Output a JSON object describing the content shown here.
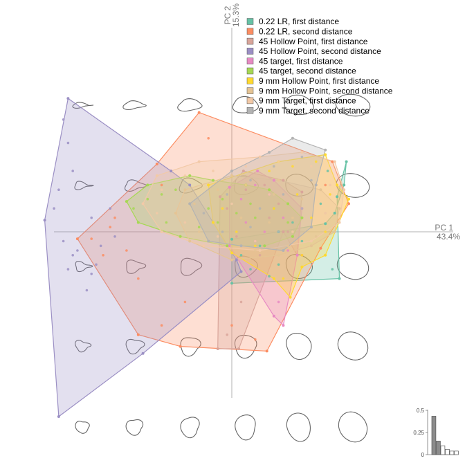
{
  "chart_data": {
    "type": "scatter",
    "subtype": "PCA morphospace with convex hulls and background outline shapes",
    "x_axis": {
      "name": "PC 1",
      "variance": "43.4%"
    },
    "y_axis": {
      "name": "PC 2",
      "variance": "15.3%"
    },
    "xlim": [
      -0.085,
      0.06
    ],
    "ylim": [
      -0.085,
      0.065
    ],
    "legend_position": "top-right",
    "series": [
      {
        "name": "0.22 LR, first distance",
        "color": "#66c2a5",
        "hull": [
          [
            0.0,
            -0.0032
          ],
          [
            0.02,
            0.0
          ],
          [
            0.04,
            0.0035
          ],
          [
            0.044,
            0.008
          ],
          [
            0.048,
            0.02
          ],
          [
            0.049,
            0.03
          ],
          [
            0.045,
            0.015
          ],
          [
            0.046,
            -0.02
          ],
          [
            0.0,
            -0.022
          ]
        ],
        "points": [
          [
            0.004,
            -0.01
          ],
          [
            0.012,
            -0.006
          ],
          [
            0.02,
            -0.014
          ],
          [
            0.03,
            -0.004
          ],
          [
            0.038,
            0.012
          ],
          [
            0.041,
            0.026
          ],
          [
            0.008,
            -0.016
          ],
          [
            0.026,
            0.004
          ],
          [
            0.043,
            -0.016
          ],
          [
            0.016,
            -0.019
          ]
        ]
      },
      {
        "name": "0.22 LR, second distance",
        "color": "#fc8d62",
        "hull": [
          [
            -0.032,
            0.029
          ],
          [
            -0.066,
            -0.003
          ],
          [
            -0.04,
            -0.044
          ],
          [
            -0.022,
            -0.049
          ],
          [
            0.015,
            -0.051
          ],
          [
            0.038,
            -0.007
          ],
          [
            0.05,
            0.012
          ],
          [
            0.043,
            0.03
          ],
          [
            -0.014,
            0.051
          ]
        ],
        "points": [
          [
            -0.06,
            -0.003
          ],
          [
            -0.055,
            -0.01
          ],
          [
            -0.05,
            0.006
          ],
          [
            -0.04,
            -0.02
          ],
          [
            -0.03,
            -0.04
          ],
          [
            -0.02,
            -0.03
          ],
          [
            0.0,
            -0.04
          ],
          [
            0.01,
            -0.046
          ],
          [
            0.03,
            -0.01
          ],
          [
            0.04,
            0.02
          ],
          [
            -0.01,
            0.04
          ],
          [
            -0.03,
            0.02
          ],
          [
            -0.045,
            -0.008
          ],
          [
            -0.052,
            0.002
          ]
        ]
      },
      {
        "name": "45 Hollow Point, first distance",
        "color": "#d9a59a",
        "hull": [
          [
            -0.005,
            0.015
          ],
          [
            0.005,
            0.026
          ],
          [
            0.022,
            0.022
          ],
          [
            0.03,
            0.017
          ],
          [
            0.028,
            -0.01
          ],
          [
            0.022,
            0.0
          ],
          [
            0.003,
            -0.05
          ],
          [
            -0.006,
            -0.05
          ]
        ],
        "points": [
          [
            -0.002,
            0.01
          ],
          [
            0.006,
            0.018
          ],
          [
            0.014,
            0.02
          ],
          [
            0.02,
            0.012
          ],
          [
            0.024,
            0.0
          ],
          [
            0.012,
            -0.01
          ],
          [
            0.004,
            -0.03
          ],
          [
            -0.002,
            -0.044
          ],
          [
            0.002,
            -0.002
          ],
          [
            0.016,
            0.006
          ]
        ]
      },
      {
        "name": "45 Hollow Point, second distance",
        "color": "#9b8fc4",
        "hull": [
          [
            -0.07,
            0.057
          ],
          [
            -0.08,
            0.005
          ],
          [
            -0.074,
            -0.079
          ],
          [
            -0.038,
            -0.052
          ],
          [
            0.004,
            -0.017
          ],
          [
            0.002,
            -0.012
          ],
          [
            -0.018,
            0.02
          ],
          [
            -0.026,
            0.026
          ]
        ],
        "points": [
          [
            -0.072,
            0.048
          ],
          [
            -0.07,
            0.038
          ],
          [
            -0.068,
            0.026
          ],
          [
            -0.074,
            0.018
          ],
          [
            -0.076,
            0.01
          ],
          [
            -0.072,
            -0.004
          ],
          [
            -0.068,
            -0.01
          ],
          [
            -0.07,
            -0.016
          ],
          [
            -0.066,
            -0.008
          ],
          [
            -0.06,
            -0.018
          ],
          [
            -0.056,
            -0.006
          ],
          [
            -0.05,
            -0.002
          ],
          [
            -0.06,
            0.006
          ],
          [
            -0.052,
            0.01
          ],
          [
            -0.062,
            -0.025
          ],
          [
            -0.058,
            -0.014
          ]
        ]
      },
      {
        "name": "45 target, first distance",
        "color": "#e78ac3",
        "hull": [
          [
            -0.001,
            0.019
          ],
          [
            0.011,
            0.026
          ],
          [
            0.018,
            0.022
          ],
          [
            0.03,
            0.01
          ],
          [
            0.028,
            -0.01
          ],
          [
            0.022,
            -0.04
          ],
          [
            0.018,
            -0.036
          ],
          [
            -0.001,
            -0.006
          ]
        ],
        "points": [
          [
            0.004,
            0.014
          ],
          [
            0.01,
            0.02
          ],
          [
            0.016,
            0.016
          ],
          [
            0.022,
            0.006
          ],
          [
            0.024,
            -0.008
          ],
          [
            0.02,
            -0.03
          ],
          [
            0.01,
            -0.004
          ],
          [
            0.006,
            0.004
          ],
          [
            0.014,
            0.0
          ],
          [
            0.018,
            0.01
          ]
        ]
      },
      {
        "name": "45 target, second distance",
        "color": "#a6d854",
        "hull": [
          [
            -0.045,
            0.013
          ],
          [
            -0.036,
            0.02
          ],
          [
            -0.018,
            0.024
          ],
          [
            -0.008,
            0.022
          ],
          [
            0.006,
            0.02
          ],
          [
            0.016,
            0.018
          ],
          [
            0.024,
            0.012
          ],
          [
            0.03,
            0.006
          ],
          [
            0.026,
            -0.002
          ],
          [
            0.014,
            -0.006
          ],
          [
            -0.002,
            -0.006
          ],
          [
            -0.022,
            -0.002
          ],
          [
            -0.04,
            0.004
          ]
        ],
        "points": [
          [
            -0.042,
            0.01
          ],
          [
            -0.036,
            0.014
          ],
          [
            -0.03,
            0.016
          ],
          [
            -0.024,
            0.018
          ],
          [
            -0.018,
            0.012
          ],
          [
            -0.01,
            0.01
          ],
          [
            -0.004,
            0.014
          ],
          [
            0.002,
            0.008
          ],
          [
            0.01,
            0.006
          ],
          [
            0.018,
            0.01
          ],
          [
            0.024,
            0.004
          ],
          [
            -0.028,
            0.004
          ],
          [
            -0.014,
            0.002
          ],
          [
            -0.006,
            0.004
          ],
          [
            0.008,
            0.012
          ]
        ]
      },
      {
        "name": "9 mm Hollow Point, first distance",
        "color": "#ffd92f",
        "hull": [
          [
            -0.01,
            0.02
          ],
          [
            0.02,
            0.03
          ],
          [
            0.04,
            0.033
          ],
          [
            0.045,
            0.02
          ],
          [
            0.05,
            0.014
          ],
          [
            0.04,
            -0.01
          ],
          [
            0.03,
            -0.015
          ],
          [
            0.025,
            -0.028
          ],
          [
            0.018,
            -0.02
          ],
          [
            0.0,
            -0.009
          ],
          [
            -0.008,
            0.004
          ]
        ],
        "points": [
          [
            -0.004,
            0.01
          ],
          [
            0.006,
            0.02
          ],
          [
            0.016,
            0.026
          ],
          [
            0.026,
            0.028
          ],
          [
            0.036,
            0.03
          ],
          [
            0.042,
            0.016
          ],
          [
            0.04,
            0.0
          ],
          [
            0.03,
            -0.01
          ],
          [
            0.022,
            -0.02
          ],
          [
            0.01,
            -0.006
          ],
          [
            0.002,
            0.0
          ],
          [
            0.018,
            0.01
          ],
          [
            0.028,
            0.016
          ],
          [
            0.034,
            0.006
          ]
        ]
      },
      {
        "name": "9 mm Hollow Point, second distance",
        "color": "#e5c494",
        "hull": [
          [
            -0.02,
            0.018
          ],
          [
            0.0,
            0.024
          ],
          [
            0.02,
            0.022
          ],
          [
            0.038,
            0.018
          ],
          [
            0.046,
            0.01
          ],
          [
            0.044,
            0.0
          ],
          [
            0.034,
            -0.006
          ],
          [
            0.02,
            -0.01
          ],
          [
            0.0,
            -0.012
          ],
          [
            -0.018,
            -0.004
          ],
          [
            -0.024,
            0.008
          ]
        ],
        "points": [
          [
            -0.016,
            0.012
          ],
          [
            -0.006,
            0.018
          ],
          [
            0.006,
            0.02
          ],
          [
            0.018,
            0.016
          ],
          [
            0.03,
            0.014
          ],
          [
            0.04,
            0.008
          ],
          [
            0.036,
            -0.002
          ],
          [
            0.024,
            -0.006
          ],
          [
            0.01,
            -0.008
          ],
          [
            -0.004,
            -0.006
          ],
          [
            -0.014,
            0.0
          ],
          [
            0.004,
            0.006
          ],
          [
            0.016,
            0.004
          ],
          [
            0.026,
            0.006
          ]
        ]
      },
      {
        "name": "9 mm Target, first distance",
        "color": "#f2c9a7",
        "hull": [
          [
            -0.032,
            0.024
          ],
          [
            -0.014,
            0.03
          ],
          [
            0.012,
            0.032
          ],
          [
            0.03,
            0.034
          ],
          [
            0.044,
            0.03
          ],
          [
            0.048,
            0.018
          ],
          [
            0.046,
            0.004
          ],
          [
            0.034,
            -0.004
          ],
          [
            0.012,
            -0.008
          ],
          [
            -0.012,
            -0.006
          ],
          [
            -0.03,
            0.0
          ],
          [
            -0.038,
            0.012
          ]
        ],
        "points": [
          [
            -0.03,
            0.018
          ],
          [
            -0.02,
            0.024
          ],
          [
            -0.008,
            0.026
          ],
          [
            0.006,
            0.028
          ],
          [
            0.02,
            0.03
          ],
          [
            0.034,
            0.028
          ],
          [
            0.042,
            0.02
          ],
          [
            0.04,
            0.008
          ],
          [
            0.026,
            0.0
          ],
          [
            0.01,
            -0.004
          ],
          [
            -0.006,
            -0.002
          ],
          [
            -0.02,
            0.004
          ],
          [
            -0.032,
            0.008
          ],
          [
            0.0,
            0.012
          ],
          [
            0.016,
            0.016
          ]
        ]
      },
      {
        "name": "9 mm Target, second distance",
        "color": "#b3b3b3",
        "hull": [
          [
            -0.018,
            0.012
          ],
          [
            0.0,
            0.026
          ],
          [
            0.016,
            0.034
          ],
          [
            0.026,
            0.04
          ],
          [
            0.04,
            0.035
          ],
          [
            0.036,
            0.02
          ],
          [
            0.034,
            0.002
          ],
          [
            0.022,
            -0.008
          ],
          [
            0.004,
            -0.006
          ],
          [
            -0.01,
            -0.004
          ]
        ],
        "points": [
          [
            -0.012,
            0.008
          ],
          [
            -0.002,
            0.016
          ],
          [
            0.008,
            0.022
          ],
          [
            0.018,
            0.028
          ],
          [
            0.03,
            0.032
          ],
          [
            0.034,
            0.022
          ],
          [
            0.03,
            0.01
          ],
          [
            0.02,
            0.0
          ],
          [
            0.008,
            0.002
          ],
          [
            -0.004,
            0.0
          ],
          [
            0.012,
            0.01
          ],
          [
            0.022,
            0.016
          ]
        ]
      }
    ],
    "inset_scree": {
      "y_ticks": [
        "0",
        "0.25",
        "0.5"
      ],
      "values": [
        0.434,
        0.153,
        0.1,
        0.06,
        0.04,
        0.04
      ],
      "ymax": 0.5
    }
  }
}
